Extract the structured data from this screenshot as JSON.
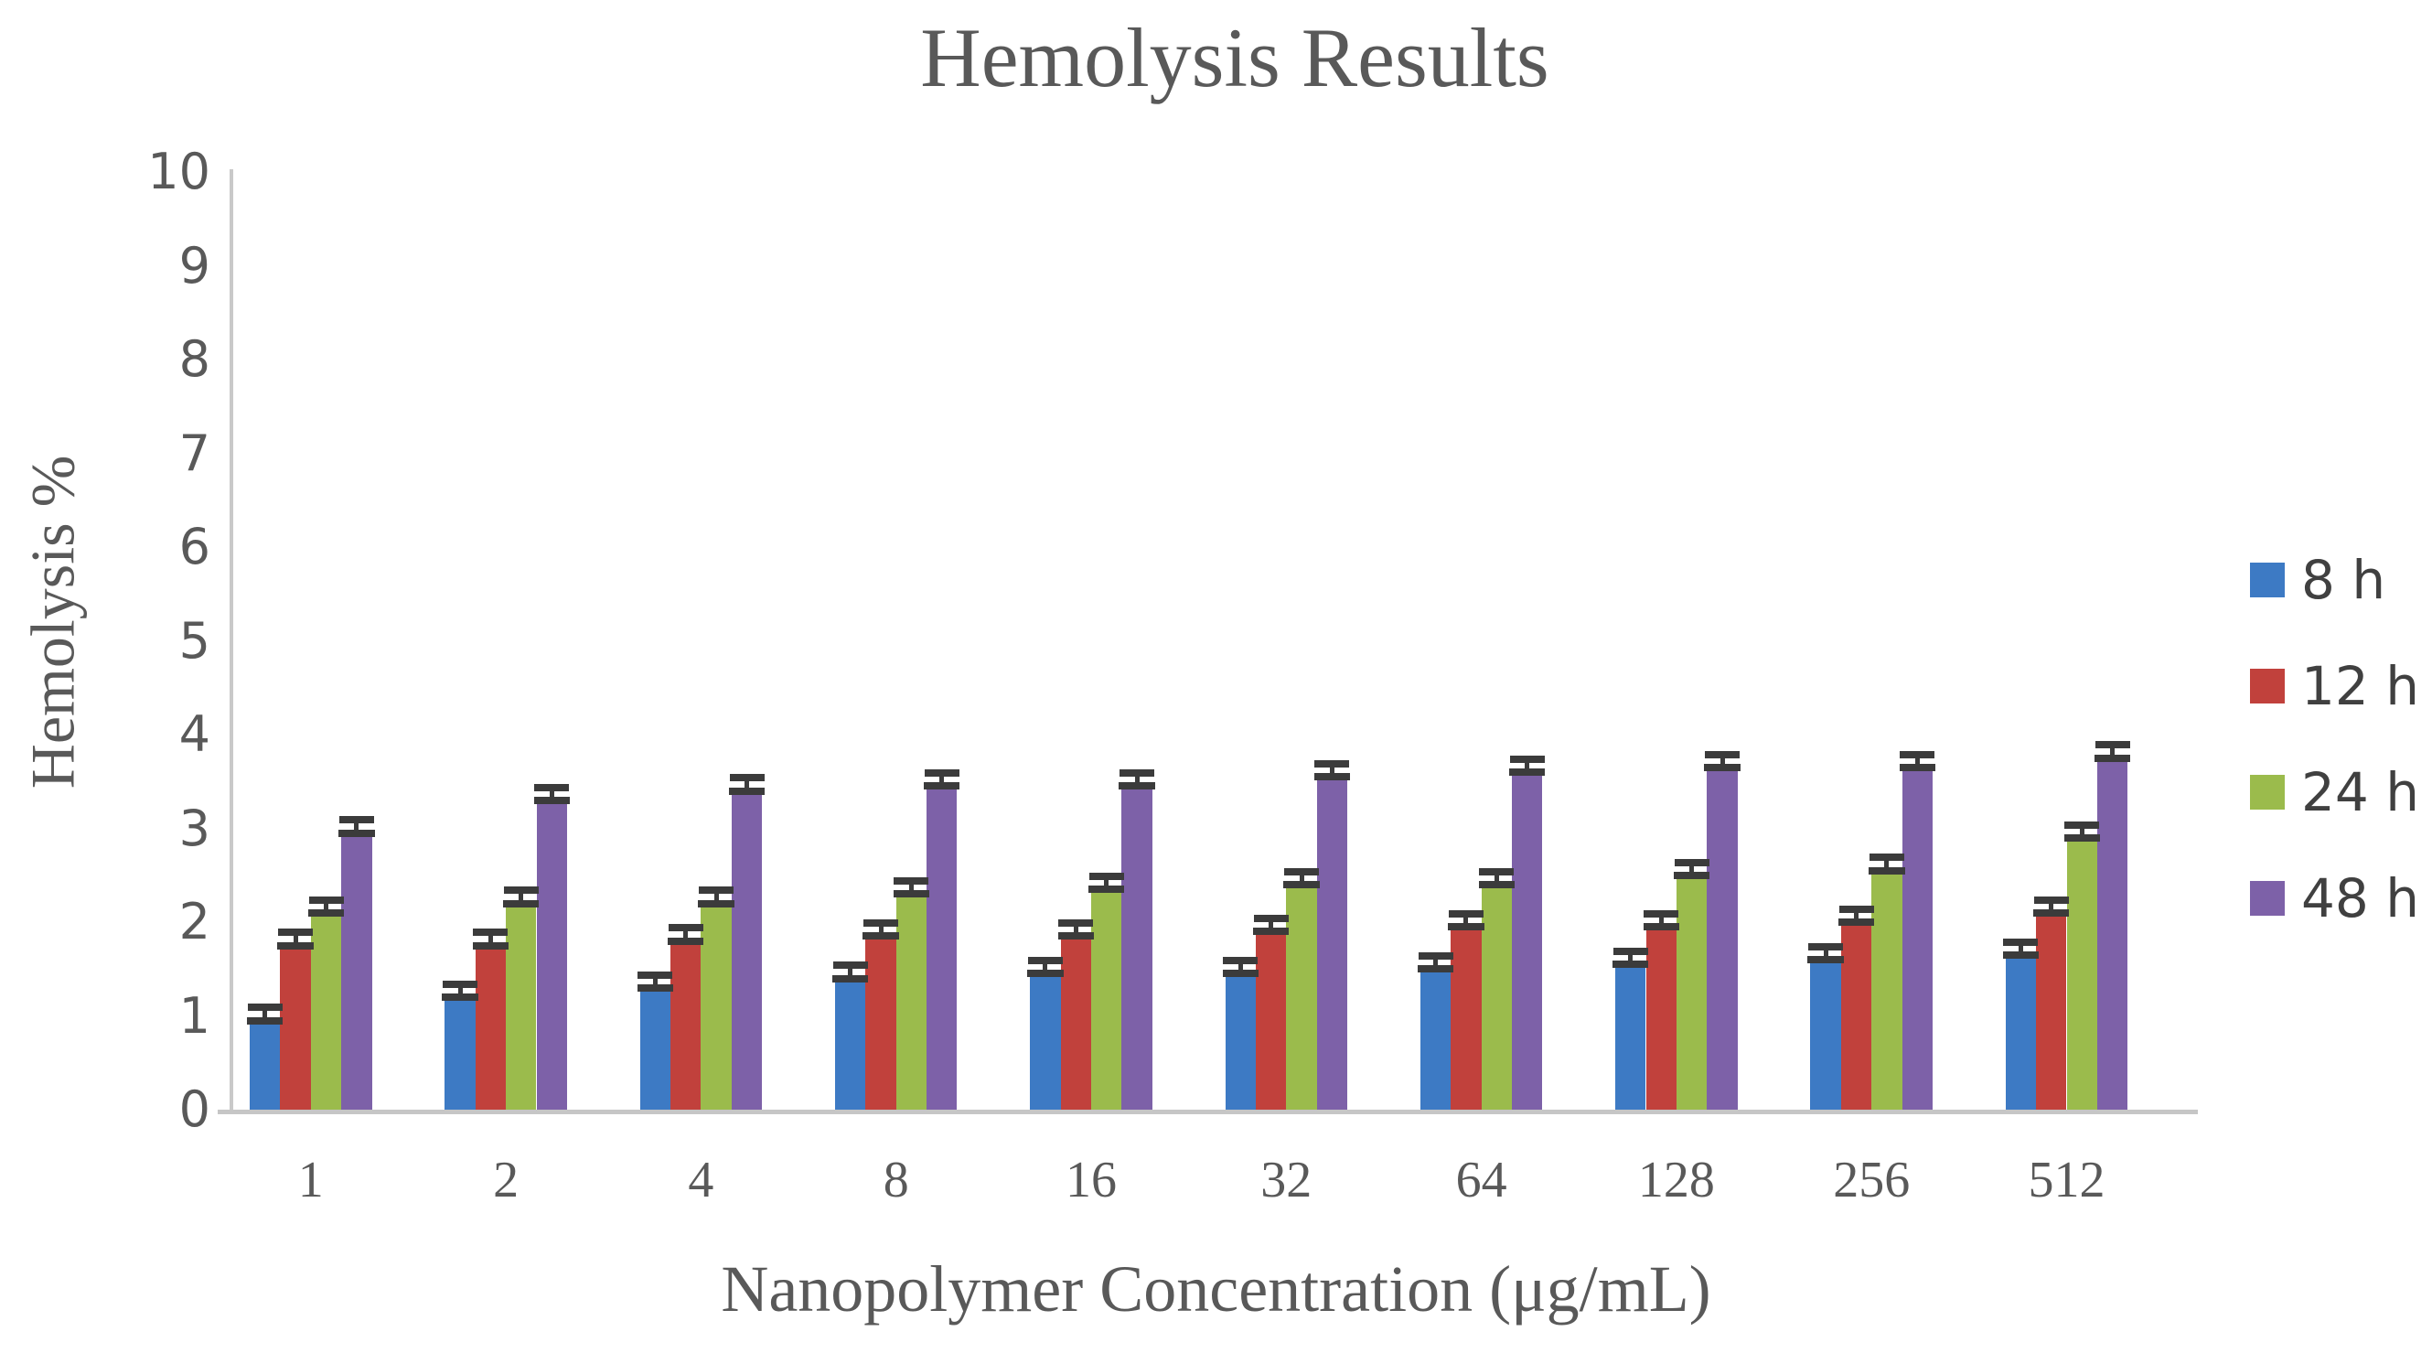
{
  "title": "Hemolysis Results",
  "chart_data": {
    "type": "bar",
    "title": "Hemolysis Results",
    "xlabel": "Nanopolymer Concentration (μg/mL)",
    "ylabel": "Hemolysis %",
    "categories": [
      "1",
      "2",
      "4",
      "8",
      "16",
      "32",
      "64",
      "128",
      "256",
      "512"
    ],
    "y_ticks": [
      0,
      1,
      2,
      3,
      4,
      5,
      6,
      7,
      8,
      9,
      10
    ],
    "ylim": [
      0,
      10
    ],
    "grid": false,
    "legend_position": "right",
    "error_bars": true,
    "series": [
      {
        "name": "8 h",
        "color": "#3D7AC4",
        "values": [
          0.95,
          1.2,
          1.3,
          1.4,
          1.45,
          1.45,
          1.5,
          1.55,
          1.6,
          1.65
        ],
        "errors": [
          0.1,
          0.1,
          0.1,
          0.1,
          0.1,
          0.1,
          0.1,
          0.1,
          0.1,
          0.1
        ]
      },
      {
        "name": "12 h",
        "color": "#C1413C",
        "values": [
          1.75,
          1.75,
          1.8,
          1.85,
          1.85,
          1.9,
          1.95,
          1.95,
          2.0,
          2.1
        ],
        "errors": [
          0.1,
          0.1,
          0.1,
          0.1,
          0.1,
          0.1,
          0.1,
          0.1,
          0.1,
          0.1
        ]
      },
      {
        "name": "24 h",
        "color": "#9BBB4C",
        "values": [
          2.1,
          2.2,
          2.2,
          2.3,
          2.35,
          2.4,
          2.4,
          2.5,
          2.55,
          2.9
        ],
        "errors": [
          0.1,
          0.1,
          0.1,
          0.1,
          0.1,
          0.1,
          0.1,
          0.1,
          0.1,
          0.1
        ]
      },
      {
        "name": "48 h",
        "color": "#7D61A8",
        "values": [
          2.95,
          3.3,
          3.4,
          3.45,
          3.45,
          3.55,
          3.6,
          3.65,
          3.65,
          3.75
        ],
        "errors": [
          0.1,
          0.1,
          0.1,
          0.1,
          0.1,
          0.1,
          0.1,
          0.1,
          0.1,
          0.1
        ]
      }
    ],
    "colors": {
      "axis_line": "#C6C6C6",
      "text": "#595959",
      "legend_text": "#404040",
      "error_bar": "#3B3B3B",
      "background": "#FFFFFF"
    }
  }
}
